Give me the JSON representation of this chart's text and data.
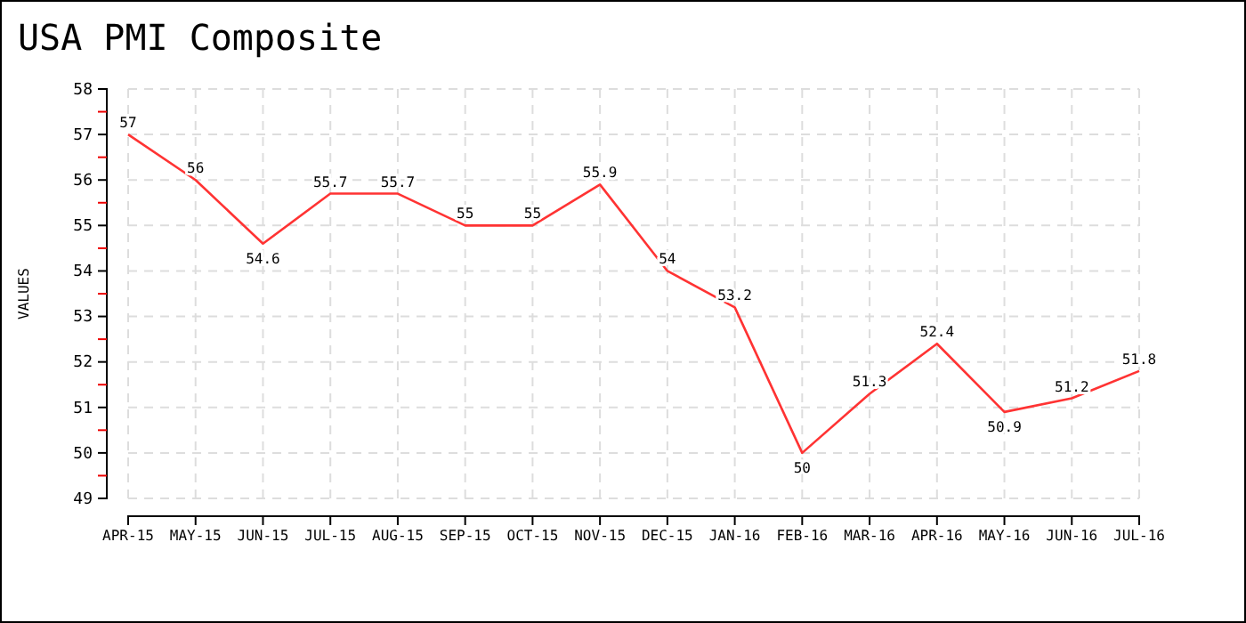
{
  "chart_data": {
    "type": "line",
    "title": "USA PMI Composite",
    "ylabel": "VALUES",
    "categories": [
      "APR-15",
      "MAY-15",
      "JUN-15",
      "JUL-15",
      "AUG-15",
      "SEP-15",
      "OCT-15",
      "NOV-15",
      "DEC-15",
      "JAN-16",
      "FEB-16",
      "MAR-16",
      "APR-16",
      "MAY-16",
      "JUN-16",
      "JUL-16"
    ],
    "series": [
      {
        "color": "#ff3333",
        "values": [
          57,
          56,
          54.6,
          55.7,
          55.7,
          55,
          55,
          55.9,
          54,
          53.2,
          50,
          51.3,
          52.4,
          50.9,
          51.2,
          51.8
        ]
      }
    ],
    "ylim": [
      49,
      58
    ],
    "yticks": [
      49,
      {
        "value": 49.5,
        "label": null
      },
      50,
      {
        "value": 50.5,
        "label": null
      },
      51,
      {
        "value": 51.5,
        "label": null
      },
      52,
      {
        "value": 52.5,
        "label": null
      },
      53,
      {
        "value": 53.5,
        "label": null
      },
      54,
      {
        "value": 54.5,
        "label": null
      },
      55,
      {
        "value": 55.5,
        "label": null
      },
      56,
      {
        "value": 56.5,
        "label": null
      },
      57,
      {
        "value": 57.5,
        "label": null
      },
      58
    ],
    "grid": true,
    "data_labels": true,
    "marker": "none",
    "line_style": "solid"
  }
}
